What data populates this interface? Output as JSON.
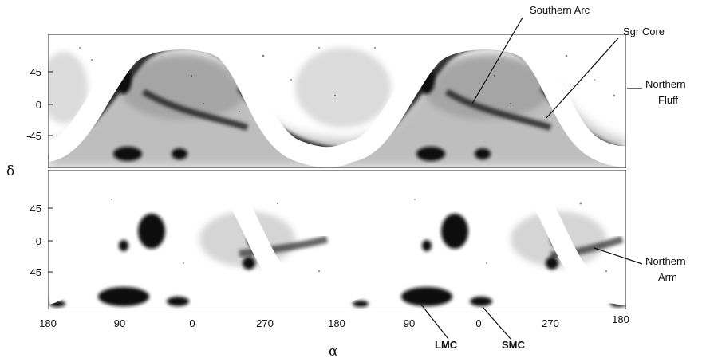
{
  "figure": {
    "y_axis_label": "δ",
    "x_axis_label": "α",
    "y_ticks": [
      "45",
      "0",
      "-45"
    ],
    "x_ticks": [
      "180",
      "90",
      "0",
      "270",
      "180",
      "90",
      "0",
      "270",
      "180"
    ],
    "annotations": {
      "southern_arc": "Southern Arc",
      "sgr_core": "Sgr Core",
      "northern_fluff_1": "Northern",
      "northern_fluff_2": "Fluff",
      "northern_arm_1": "Northern",
      "northern_arm_2": "Arm",
      "lmc": "LMC",
      "smc": "SMC"
    }
  }
}
